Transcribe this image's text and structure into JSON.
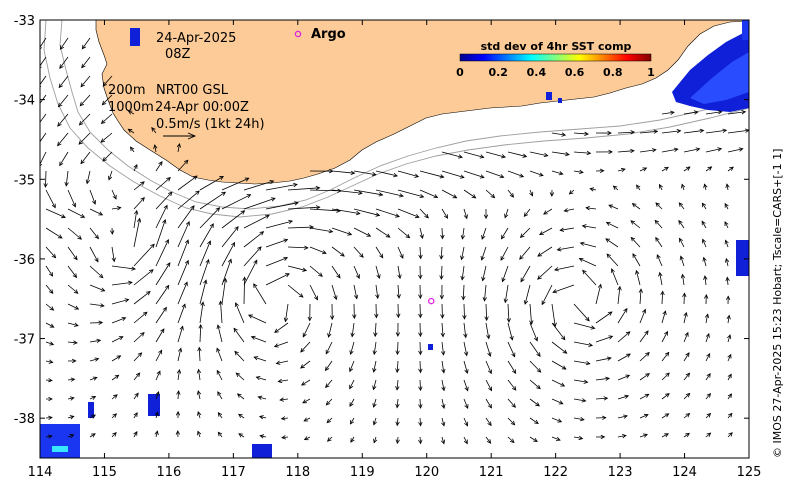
{
  "map": {
    "date": "24-Apr-2025",
    "time": "08Z",
    "depth_label_1": "200m",
    "depth_label_2": "1000m",
    "product": "NRT00 GSL",
    "product_time": "24-Apr 00:00Z",
    "velocity_scale": "0.5m/s (1kt 24h)",
    "argo_label": "Argo",
    "credit": "© IMOS 27-Apr-2025 15:23 Hobart; Tscale=CARS+[-1 1]",
    "colors": {
      "land": "#fccb97",
      "ocean": "#ffffff",
      "argo": "#e020e0",
      "isobath": "#9e9e9e",
      "arrow": "#000000"
    }
  },
  "colorbar": {
    "title": "std dev of 4hr SST comp",
    "ticks": [
      "0",
      "0.2",
      "0.4",
      "0.6",
      "0.8",
      "1"
    ],
    "stops": [
      "#00008f",
      "#0000ff",
      "#0080ff",
      "#00ffff",
      "#80ff80",
      "#ffff00",
      "#ff8000",
      "#ff0000",
      "#800000"
    ]
  },
  "axes": {
    "x_ticks": [
      "114",
      "115",
      "116",
      "117",
      "118",
      "119",
      "120",
      "121",
      "122",
      "123",
      "124",
      "125"
    ],
    "y_ticks": [
      "-33",
      "-34",
      "-35",
      "-36",
      "-37",
      "-38"
    ],
    "lon_range": [
      114,
      125
    ],
    "lat_range": [
      -38.5,
      -33
    ]
  },
  "argo_floats": [
    {
      "lon": 118.0,
      "lat": -33.17
    },
    {
      "lon": 120.07,
      "lat": -36.53
    }
  ]
}
